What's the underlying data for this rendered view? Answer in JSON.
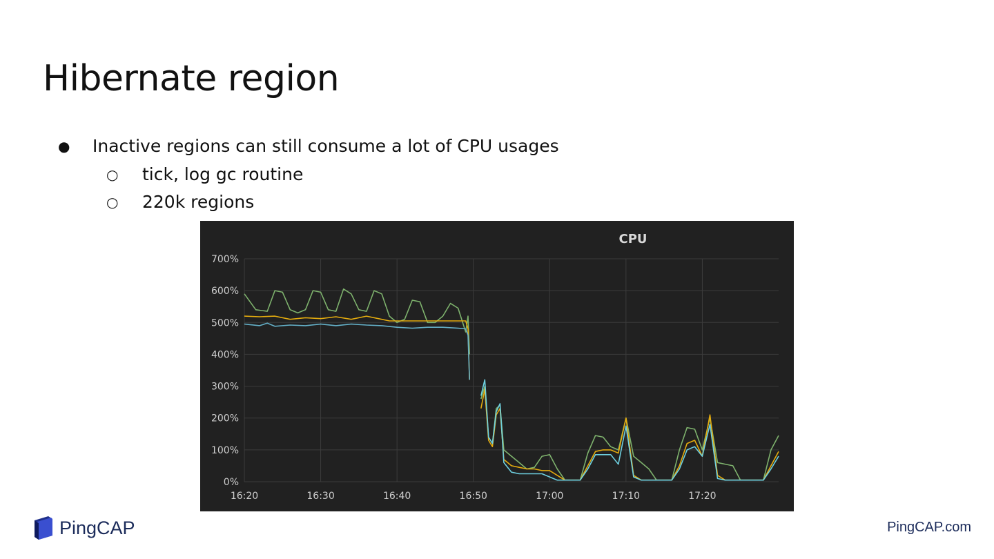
{
  "slide": {
    "title": "Hibernate region",
    "bullets": [
      {
        "marker": "●",
        "text": "Inactive regions can still consume a lot of CPU usages"
      },
      {
        "marker": "○",
        "text": "tick, log gc routine"
      },
      {
        "marker": "○",
        "text": "220k regions"
      }
    ]
  },
  "chart_data": {
    "type": "line",
    "title": "CPU",
    "ylim": [
      0,
      700
    ],
    "yticks": [
      "0%",
      "100%",
      "200%",
      "300%",
      "400%",
      "500%",
      "600%",
      "700%"
    ],
    "xticks": [
      "16:20",
      "16:30",
      "16:40",
      "16:50",
      "17:00",
      "17:10",
      "17:20"
    ],
    "grid": true,
    "colors": {
      "background": "#212121",
      "grid": "#3c3c3c",
      "green": "#7eb26d",
      "yellow": "#e5ac0e",
      "blue": "#64b0c8",
      "cyan": "#6ed0e0"
    },
    "series": [
      {
        "color": "#7eb26d",
        "x": [
          0,
          1.5,
          3,
          4,
          5,
          6,
          7,
          8,
          9,
          10,
          11,
          12,
          13,
          14,
          15,
          16,
          17,
          18,
          19,
          20,
          21,
          22,
          23,
          24,
          25,
          26,
          27,
          28,
          29,
          29.3,
          29.5,
          30,
          31,
          32,
          33,
          34,
          35,
          36,
          37,
          38,
          39,
          40,
          41,
          42,
          43,
          44,
          45,
          46,
          47,
          48,
          49,
          50,
          51,
          52,
          53,
          54,
          55,
          56,
          57,
          58,
          59,
          60,
          61,
          62,
          63,
          64,
          65,
          66,
          67,
          68,
          69,
          70
        ],
        "y": [
          590,
          540,
          535,
          600,
          595,
          540,
          530,
          540,
          600,
          595,
          540,
          535,
          605,
          590,
          540,
          535,
          600,
          590,
          520,
          500,
          510,
          570,
          565,
          500,
          500,
          520,
          560,
          545,
          470,
          520,
          400,
          null,
          null,
          null,
          null,
          null,
          null,
          null,
          null,
          null,
          null,
          null,
          null,
          null,
          null,
          null,
          null,
          null,
          null,
          null,
          null,
          null,
          null,
          null,
          null,
          null,
          null,
          null,
          null,
          null,
          null,
          null,
          null,
          null,
          null,
          null,
          null,
          null,
          null,
          null,
          null,
          null
        ]
      },
      {
        "color": "#e5ac0e",
        "x": [
          0,
          2,
          4,
          6,
          8,
          10,
          12,
          14,
          16,
          18,
          19,
          20,
          22,
          24,
          26,
          28,
          29,
          29.3,
          29.5
        ],
        "y": [
          520,
          518,
          520,
          510,
          515,
          512,
          518,
          510,
          520,
          510,
          505,
          505,
          505,
          505,
          505,
          505,
          505,
          480,
          320
        ]
      },
      {
        "color": "#64b0c8",
        "x": [
          0,
          2,
          3,
          4,
          6,
          8,
          10,
          12,
          14,
          16,
          18,
          20,
          22,
          24,
          26,
          28,
          29,
          29.3,
          29.5
        ],
        "y": [
          495,
          490,
          498,
          488,
          492,
          490,
          495,
          490,
          495,
          492,
          490,
          485,
          482,
          485,
          485,
          482,
          480,
          460,
          320
        ]
      }
    ],
    "series_after": [
      {
        "color": "#7eb26d",
        "x": [
          31,
          31.5,
          32,
          32.5,
          33,
          33.5,
          34,
          35,
          36,
          37,
          38,
          39,
          40,
          41,
          42,
          43,
          44,
          45,
          46,
          47,
          48,
          49,
          50,
          51,
          52,
          53,
          54,
          55,
          56,
          57,
          58,
          59,
          60,
          61,
          62,
          63,
          64,
          65,
          66,
          67,
          68,
          69,
          70
        ],
        "y": [
          260,
          300,
          140,
          120,
          230,
          240,
          100,
          80,
          60,
          40,
          45,
          80,
          85,
          40,
          5,
          5,
          5,
          90,
          145,
          140,
          110,
          100,
          200,
          80,
          60,
          40,
          5,
          5,
          5,
          100,
          170,
          165,
          100,
          200,
          60,
          55,
          50,
          5,
          5,
          5,
          5,
          100,
          145
        ]
      },
      {
        "color": "#e5ac0e",
        "x": [
          31,
          31.5,
          32,
          32.5,
          33,
          33.5,
          34,
          35,
          36,
          37,
          38,
          39,
          40,
          41,
          42,
          43,
          44,
          45,
          46,
          47,
          48,
          49,
          50,
          51,
          52,
          53,
          54,
          55,
          56,
          57,
          58,
          59,
          60,
          61,
          62,
          63,
          64,
          65,
          66,
          67,
          68,
          69,
          70
        ],
        "y": [
          230,
          290,
          130,
          110,
          210,
          230,
          70,
          50,
          45,
          40,
          40,
          35,
          35,
          20,
          5,
          5,
          5,
          50,
          95,
          100,
          100,
          90,
          200,
          20,
          5,
          5,
          5,
          5,
          5,
          50,
          120,
          130,
          80,
          210,
          20,
          5,
          5,
          5,
          5,
          5,
          5,
          50,
          95
        ]
      },
      {
        "color": "#6ed0e0",
        "x": [
          31,
          31.5,
          32,
          32.5,
          33,
          33.5,
          34,
          35,
          36,
          37,
          38,
          39,
          40,
          41,
          42,
          43,
          44,
          45,
          46,
          47,
          48,
          49,
          50,
          51,
          52,
          53,
          54,
          55,
          56,
          57,
          58,
          59,
          60,
          61,
          62,
          63,
          64,
          65,
          66,
          67,
          68,
          69,
          70
        ],
        "y": [
          270,
          320,
          140,
          120,
          220,
          245,
          60,
          30,
          25,
          25,
          25,
          25,
          15,
          5,
          5,
          5,
          5,
          40,
          85,
          85,
          85,
          55,
          175,
          15,
          5,
          5,
          5,
          5,
          5,
          40,
          100,
          110,
          80,
          180,
          10,
          5,
          5,
          5,
          5,
          5,
          5,
          40,
          80
        ]
      }
    ]
  },
  "branding": {
    "logo_text": "PingCAP",
    "url": "PingCAP.com"
  }
}
